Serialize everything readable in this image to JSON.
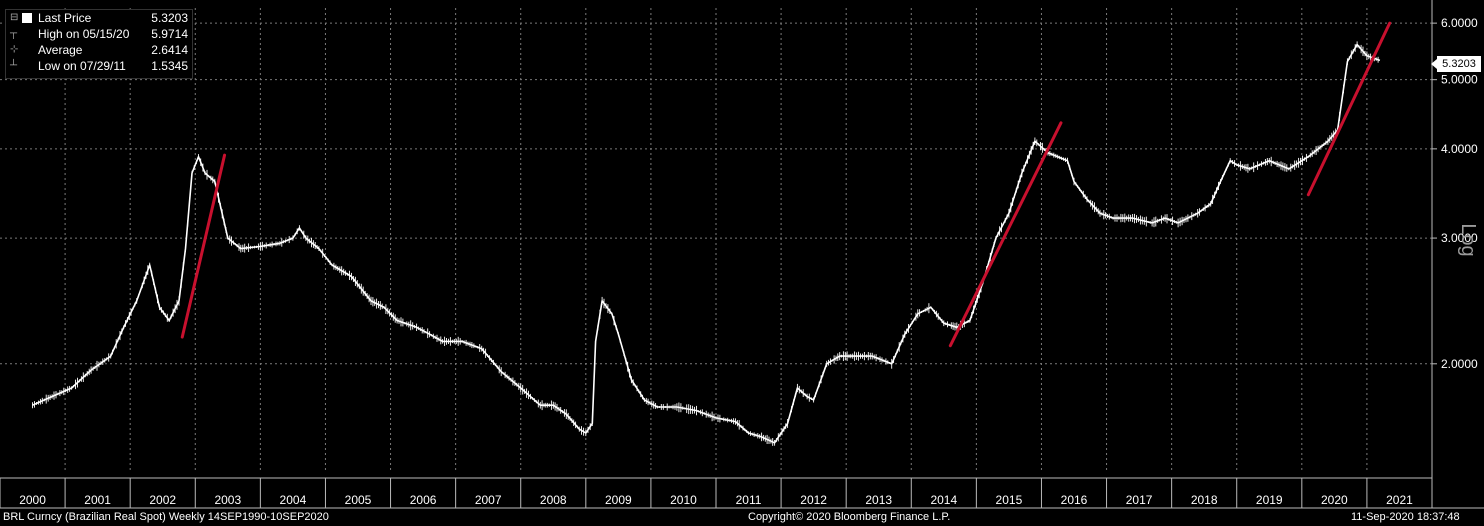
{
  "legend": {
    "last_price_label": "Last Price",
    "last_price_value": "5.3203",
    "high_label": "High on 05/15/20",
    "high_value": "5.9714",
    "average_label": "Average",
    "average_value": "2.6414",
    "low_label": "Low on 07/29/11",
    "low_value": "1.5345"
  },
  "last_price_tag": "5.3203",
  "footer": {
    "left": "BRL Curncy (Brazilian Real Spot)  Weekly 14SEP1990-10SEP2020",
    "center": "Copyright© 2020 Bloomberg Finance L.P.",
    "right": "11-Sep-2020 18:37:48"
  },
  "colors": {
    "background": "#000000",
    "series": "#ffffff",
    "trendline": "#c8102e",
    "grid": "#7a7a7a"
  },
  "chart_data": {
    "type": "line",
    "scale": "log",
    "ylabel": "Log",
    "y_ticks": [
      2.0,
      3.0,
      4.0,
      5.0,
      6.0
    ],
    "y_tick_labels": [
      "2.0000",
      "3.0000",
      "4.0000",
      "5.0000",
      "6.0000"
    ],
    "x_tick_labels": [
      "2000",
      "2001",
      "2002",
      "2003",
      "2004",
      "2005",
      "2006",
      "2007",
      "2008",
      "2009",
      "2010",
      "2011",
      "2012",
      "2013",
      "2014",
      "2015",
      "2016",
      "2017",
      "2018",
      "2019",
      "2020",
      "2021"
    ],
    "grid": true,
    "series": [
      {
        "x": [
          2000.0,
          2000.3,
          2000.6,
          2000.9,
          2001.2,
          2001.4,
          2001.6,
          2001.8,
          2001.95,
          2002.1,
          2002.25,
          2002.35,
          2002.45,
          2002.55,
          2002.65,
          2002.8,
          2003.0,
          2003.2,
          2003.5,
          2003.8,
          2004.0,
          2004.1,
          2004.2,
          2004.4,
          2004.6,
          2004.9,
          2005.2,
          2005.4,
          2005.6,
          2005.9,
          2006.1,
          2006.3,
          2006.6,
          2006.9,
          2007.2,
          2007.5,
          2007.8,
          2008.0,
          2008.2,
          2008.4,
          2008.5,
          2008.6,
          2008.65,
          2008.75,
          2008.9,
          2009.0,
          2009.2,
          2009.4,
          2009.6,
          2009.9,
          2010.2,
          2010.5,
          2010.8,
          2011.0,
          2011.2,
          2011.4,
          2011.6,
          2011.75,
          2011.9,
          2012.0,
          2012.2,
          2012.4,
          2012.6,
          2012.9,
          2013.2,
          2013.4,
          2013.6,
          2013.8,
          2014.0,
          2014.2,
          2014.4,
          2014.6,
          2014.8,
          2015.0,
          2015.2,
          2015.4,
          2015.6,
          2015.75,
          2015.9,
          2016.0,
          2016.2,
          2016.4,
          2016.6,
          2016.9,
          2017.2,
          2017.4,
          2017.6,
          2017.9,
          2018.1,
          2018.25,
          2018.4,
          2018.5,
          2018.7,
          2019.0,
          2019.3,
          2019.6,
          2019.9,
          2020.05,
          2020.2,
          2020.35,
          2020.5,
          2020.7
        ],
        "values": [
          1.75,
          1.8,
          1.85,
          1.96,
          2.05,
          2.25,
          2.45,
          2.75,
          2.4,
          2.3,
          2.45,
          2.9,
          3.7,
          3.9,
          3.7,
          3.6,
          3.0,
          2.9,
          2.92,
          2.95,
          3.0,
          3.1,
          3.0,
          2.9,
          2.75,
          2.65,
          2.45,
          2.4,
          2.3,
          2.25,
          2.2,
          2.15,
          2.15,
          2.1,
          1.95,
          1.85,
          1.75,
          1.75,
          1.7,
          1.62,
          1.6,
          1.65,
          2.15,
          2.45,
          2.35,
          2.2,
          1.9,
          1.78,
          1.74,
          1.74,
          1.72,
          1.68,
          1.66,
          1.6,
          1.58,
          1.55,
          1.65,
          1.85,
          1.8,
          1.78,
          2.0,
          2.05,
          2.05,
          2.05,
          2.0,
          2.2,
          2.35,
          2.4,
          2.28,
          2.25,
          2.3,
          2.6,
          3.0,
          3.25,
          3.7,
          4.1,
          3.95,
          3.9,
          3.85,
          3.6,
          3.4,
          3.25,
          3.2,
          3.2,
          3.15,
          3.2,
          3.15,
          3.25,
          3.35,
          3.6,
          3.85,
          3.8,
          3.75,
          3.85,
          3.75,
          3.9,
          4.1,
          4.25,
          5.3,
          5.6,
          5.4,
          5.32
        ]
      }
    ],
    "xlim": [
      1999.5,
      2021.5
    ],
    "ylim": [
      1.42,
      6.3
    ],
    "trendlines": [
      {
        "x": [
          2002.3,
          2002.95
        ],
        "y": [
          2.18,
          3.92
        ]
      },
      {
        "x": [
          2014.1,
          2015.8
        ],
        "y": [
          2.12,
          4.35
        ]
      },
      {
        "x": [
          2019.6,
          2020.85
        ],
        "y": [
          3.45,
          6.0
        ]
      }
    ]
  }
}
